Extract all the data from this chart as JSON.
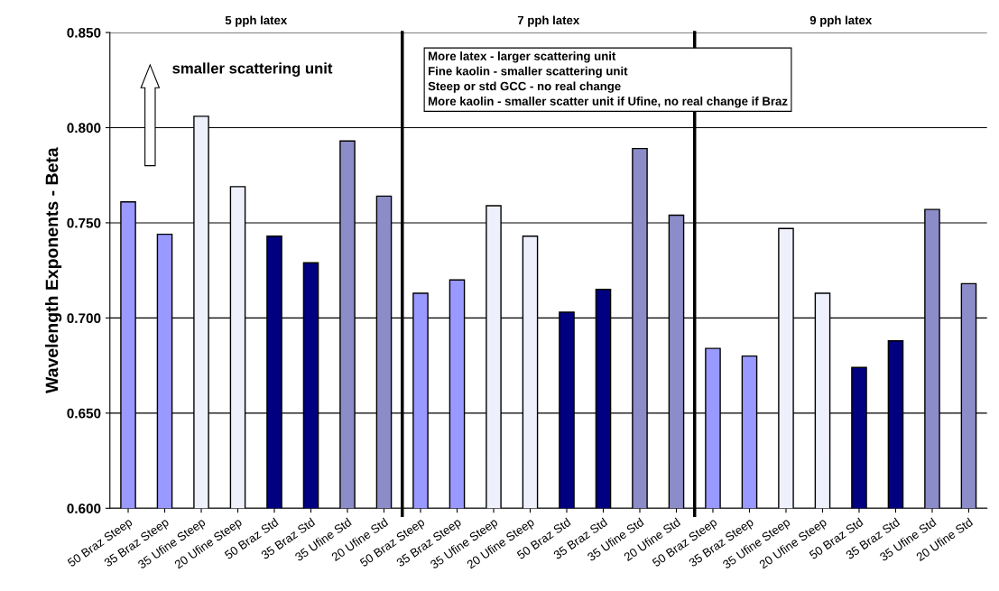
{
  "chart_data": {
    "type": "bar",
    "ylabel": "Wavelength Exponents - Beta",
    "categories": [
      "50 Braz Steep",
      "35 Braz Steep",
      "35 Ufine Steep",
      "20 Ufine Steep",
      "50 Braz Std",
      "35 Braz Std",
      "35 Ufine Std",
      "20 Ufine Std",
      "50 Braz Steep",
      "35 Braz Steep",
      "35 Ufine Steep",
      "20 Ufine Steep",
      "50 Braz Std",
      "35 Braz Std",
      "35 Ufine Std",
      "20 Ufine Std",
      "50 Braz Steep",
      "35 Braz Steep",
      "35 Ufine Steep",
      "20 Ufine Steep",
      "50 Braz Std",
      "35 Braz Std",
      "35 Ufine Std",
      "20 Ufine Std"
    ],
    "values": [
      0.761,
      0.744,
      0.806,
      0.769,
      0.743,
      0.729,
      0.793,
      0.764,
      0.713,
      0.72,
      0.759,
      0.743,
      0.703,
      0.715,
      0.789,
      0.754,
      0.684,
      0.68,
      0.747,
      0.713,
      0.674,
      0.688,
      0.757,
      0.718
    ],
    "colors": [
      "#9999ff",
      "#9999ff",
      "#eef0fb",
      "#eef0fb",
      "#000080",
      "#000080",
      "#8c8cc8",
      "#8c8cc8",
      "#9999ff",
      "#9999ff",
      "#eef0fb",
      "#eef0fb",
      "#000080",
      "#000080",
      "#8c8cc8",
      "#8c8cc8",
      "#9999ff",
      "#9999ff",
      "#eef0fb",
      "#eef0fb",
      "#000080",
      "#000080",
      "#8c8cc8",
      "#8c8cc8"
    ],
    "ylim": [
      0.6,
      0.85
    ],
    "yticks": [
      {
        "value": 0.6,
        "label": "0.600"
      },
      {
        "value": 0.65,
        "label": "0.650"
      },
      {
        "value": 0.7,
        "label": "0.700"
      },
      {
        "value": 0.75,
        "label": "0.750"
      },
      {
        "value": 0.8,
        "label": "0.800"
      },
      {
        "value": 0.85,
        "label": "0.850"
      }
    ],
    "grid": "y",
    "annotations": [
      "5 pph latex",
      "7 pph latex",
      "9 pph latex",
      "smaller scattering unit",
      "More latex - larger scattering unit\nFine kaolin - smaller scattering unit\nSteep or std GCC - no real change\nMore kaolin - smaller scatter unit if Ufine, no real change if Braz"
    ]
  }
}
